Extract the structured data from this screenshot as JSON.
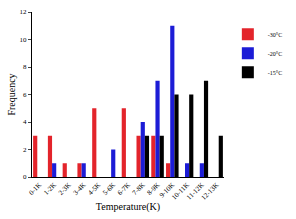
{
  "chart_data": {
    "type": "bar",
    "x_label": "Temperature(K)",
    "y_label": "Frequency",
    "categories": [
      "0-1K",
      "1-2K",
      "2-3K",
      "3-4K",
      "4-5K",
      "5-6K",
      "6-7K",
      "7-8K",
      "8-9K",
      "9-10K",
      "10-11K",
      "11-12K",
      "12-13K"
    ],
    "series": [
      {
        "name": "-30°C",
        "color": "#e3242b",
        "values": [
          3,
          3,
          1,
          1,
          5,
          0,
          5,
          3,
          3,
          1,
          0,
          0,
          0
        ]
      },
      {
        "name": "-20°C",
        "color": "#1c1cd6",
        "values": [
          0,
          1,
          0,
          1,
          0,
          2,
          0,
          4,
          7,
          11,
          1,
          1,
          0
        ]
      },
      {
        "name": "-15°C",
        "color": "#000000",
        "values": [
          0,
          0,
          0,
          0,
          0,
          0,
          0,
          3,
          3,
          6,
          6,
          7,
          3
        ]
      }
    ],
    "ylim": [
      0,
      12
    ],
    "yticks": [
      0,
      2,
      4,
      6,
      8,
      10,
      12
    ],
    "grid": false,
    "legend": "right"
  }
}
